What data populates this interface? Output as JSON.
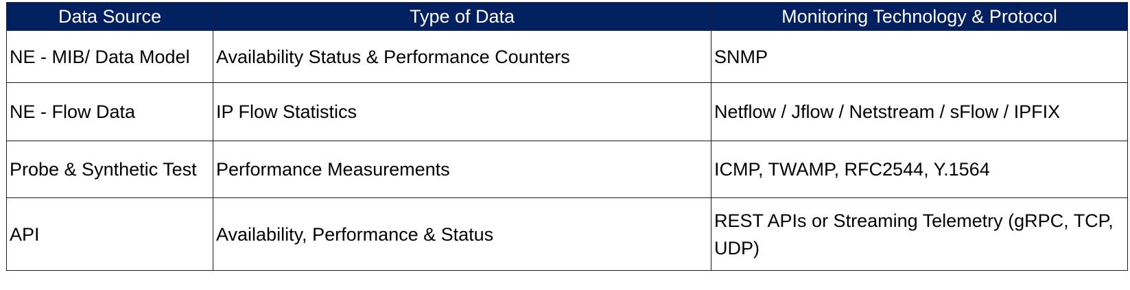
{
  "colors": {
    "header_background": "#022060",
    "header_text": "#ffffff",
    "border": "#1a1a1a",
    "body_text": "#000000"
  },
  "table": {
    "headers": [
      "Data Source",
      "Type of Data",
      "Monitoring Technology & Protocol"
    ],
    "rows": [
      [
        "NE - MIB/ Data Model",
        "Availability Status & Performance Counters",
        "SNMP"
      ],
      [
        "NE - Flow Data",
        "IP Flow Statistics",
        "Netflow / Jflow / Netstream / sFlow / IPFIX"
      ],
      [
        "Probe & Synthetic Test",
        "Performance Measurements",
        "ICMP, TWAMP, RFC2544, Y.1564"
      ],
      [
        "API",
        "Availability, Performance & Status",
        "REST APIs or Streaming Telemetry (gRPC, TCP, UDP)"
      ]
    ]
  }
}
